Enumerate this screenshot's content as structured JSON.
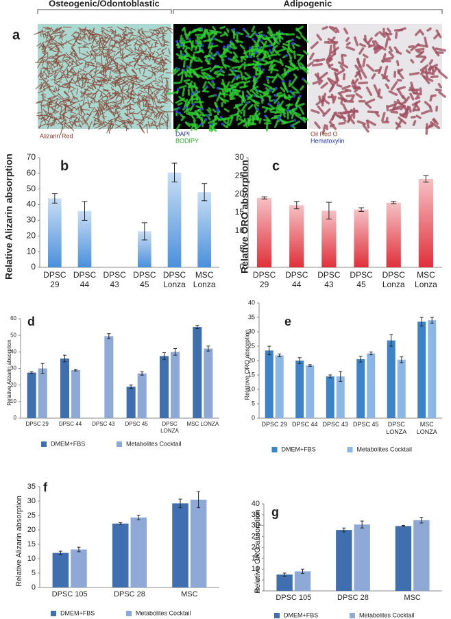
{
  "figure": {
    "headers": [
      "Osteogenic/Odontoblastic",
      "Adipogenic"
    ],
    "panel_label": "a",
    "captions": [
      [
        "Alizarin Red"
      ],
      [
        "DAPI",
        "BODIPY"
      ],
      [
        "Oil Red O",
        "Hematoxylin"
      ]
    ]
  },
  "chart_data": [
    {
      "type": "bar",
      "label": "b",
      "ylabel": "Relative Alizarin absorption",
      "categories": [
        "DPSC 29",
        "DPSC 44",
        "DPSC 43",
        "DPSC 45",
        "DPSC Lonza",
        "MSC Lonza"
      ],
      "values": [
        44,
        36,
        null,
        23,
        60.5,
        48
      ],
      "errors": [
        3,
        6,
        null,
        5.5,
        6,
        5.5
      ],
      "color": "#4a90dc",
      "ylim": [
        0,
        70
      ],
      "yticks": [
        0,
        10,
        20,
        30,
        40,
        50,
        60,
        70
      ]
    },
    {
      "type": "bar",
      "label": "c",
      "ylabel": "Relative ORO absorption",
      "categories": [
        "DPSC 29",
        "DPSC 44",
        "DPSC 43",
        "DPSC 45",
        "DPSC Lonza",
        "MSC Lonza"
      ],
      "values": [
        19,
        17,
        15.5,
        15.8,
        17.7,
        24.2
      ],
      "errors": [
        0.3,
        1,
        2.3,
        0.5,
        0.3,
        0.9
      ],
      "color": "#e0303a",
      "ylim": [
        0,
        30
      ],
      "yticks": [
        0,
        5,
        10,
        15,
        20,
        25,
        30
      ]
    },
    {
      "type": "bar",
      "label": "d",
      "ylabel": "Relative Alizarin absorption",
      "categories": [
        "DPSC 29",
        "DPSC 44",
        "DPSC 43",
        "DPSC 45",
        "DPSC LONZA",
        "MSC LONZA"
      ],
      "series": [
        {
          "name": "DMEM+FBS",
          "color": "#3f6faf",
          "values": [
            27.5,
            36,
            null,
            19,
            37.5,
            55
          ],
          "errors": [
            0.5,
            2,
            null,
            1,
            2,
            1
          ]
        },
        {
          "name": "Metabolites Cocktail",
          "color": "#8fa9d6",
          "values": [
            30,
            29,
            49.5,
            27,
            40,
            42
          ],
          "errors": [
            3,
            0.5,
            1.5,
            1,
            2,
            1.5
          ]
        }
      ],
      "ylim": [
        0,
        60
      ],
      "yticks": [
        0,
        10,
        20,
        30,
        40,
        50,
        60
      ]
    },
    {
      "type": "bar",
      "label": "e",
      "ylabel": "Relatove ORO absorption",
      "categories": [
        "DPSC 29",
        "DPSC 44",
        "DPSC 43",
        "DPSC 45",
        "DPSC LONZA",
        "MSC LONZA"
      ],
      "series": [
        {
          "name": "DMEM+FBS",
          "color": "#3c83c8",
          "values": [
            23.5,
            20,
            14.5,
            20.5,
            27,
            33.5
          ],
          "errors": [
            1.5,
            1,
            0.5,
            1,
            2,
            1.5
          ]
        },
        {
          "name": "Metabolites Cocktail",
          "color": "#8cb6e6",
          "values": [
            21.8,
            18.3,
            14.5,
            22.5,
            20.3,
            34
          ],
          "errors": [
            0.5,
            0.3,
            1.7,
            0.5,
            1,
            1
          ]
        }
      ],
      "ylim": [
        0,
        40
      ],
      "yticks": [
        0,
        5,
        10,
        15,
        20,
        25,
        30,
        35,
        40
      ]
    },
    {
      "type": "bar",
      "label": "f",
      "ylabel": "Relative Alizarin absorption",
      "categories": [
        "DPSC 105",
        "DPSC 28",
        "MSC"
      ],
      "series": [
        {
          "name": "DMEM+FBS",
          "color": "#3f6faf",
          "values": [
            12,
            22.2,
            29.2
          ],
          "errors": [
            0.6,
            0.3,
            1.5
          ]
        },
        {
          "name": "Metabolites Cocktail",
          "color": "#8fa9d6",
          "values": [
            13.2,
            24.3,
            30.5
          ],
          "errors": [
            0.8,
            0.8,
            2.8
          ]
        }
      ],
      "ylim": [
        0,
        35
      ],
      "yticks": [
        0,
        5,
        10,
        15,
        20,
        25,
        30,
        35
      ]
    },
    {
      "type": "bar",
      "label": "g",
      "ylabel": "Relative ORO absorption",
      "categories": [
        "DPSC 105",
        "DPSC 28",
        "MSC"
      ],
      "series": [
        {
          "name": "DMEM+FBS",
          "color": "#3f6faf",
          "values": [
            7.5,
            28,
            29.8
          ],
          "errors": [
            0.7,
            0.9,
            0.3
          ]
        },
        {
          "name": "Metabolites Cocktail",
          "color": "#8fa9d6",
          "values": [
            9,
            30.5,
            32.5
          ],
          "errors": [
            1,
            1.6,
            1.3
          ]
        }
      ],
      "ylim": [
        0,
        40
      ],
      "yticks": [
        0,
        5,
        10,
        15,
        20,
        25,
        30,
        35,
        40
      ]
    }
  ]
}
